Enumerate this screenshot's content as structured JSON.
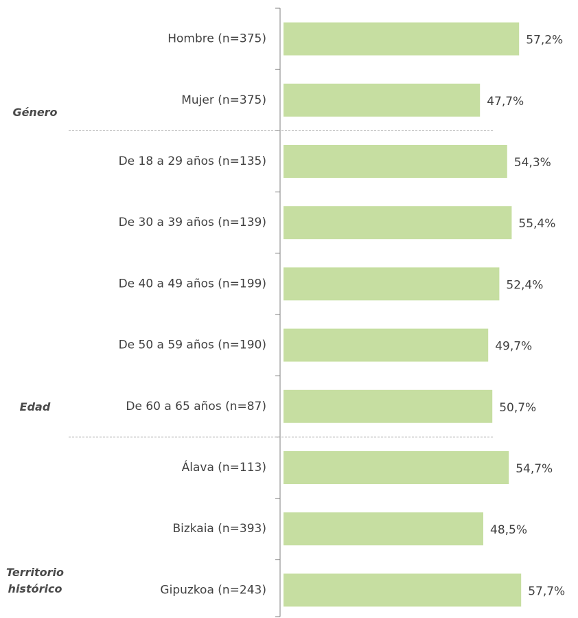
{
  "chart_data": {
    "type": "bar",
    "orientation": "horizontal",
    "categories": [
      "Hombre (n=375)",
      "Mujer (n=375)",
      "De 18 a 29 años (n=135)",
      "De 30 a 39 años (n=139)",
      "De 40 a 49 años (n=199)",
      "De 50 a 59 años (n=190)",
      "De 60 a 65 años (n=87)",
      "Álava (n=113)",
      "Bizkaia (n=393)",
      "Gipuzkoa (n=243)"
    ],
    "values": [
      57.2,
      47.7,
      54.3,
      55.4,
      52.4,
      49.7,
      50.7,
      54.7,
      48.5,
      57.7
    ],
    "value_labels": [
      "57,2%",
      "47,7%",
      "54,3%",
      "55,4%",
      "52,4%",
      "49,7%",
      "50,7%",
      "54,7%",
      "48,5%",
      "57,7%"
    ],
    "groups": [
      "Género",
      "Edad",
      "Territorio histórico"
    ],
    "color": "#c6dea1",
    "xlim": [
      0,
      70
    ]
  }
}
